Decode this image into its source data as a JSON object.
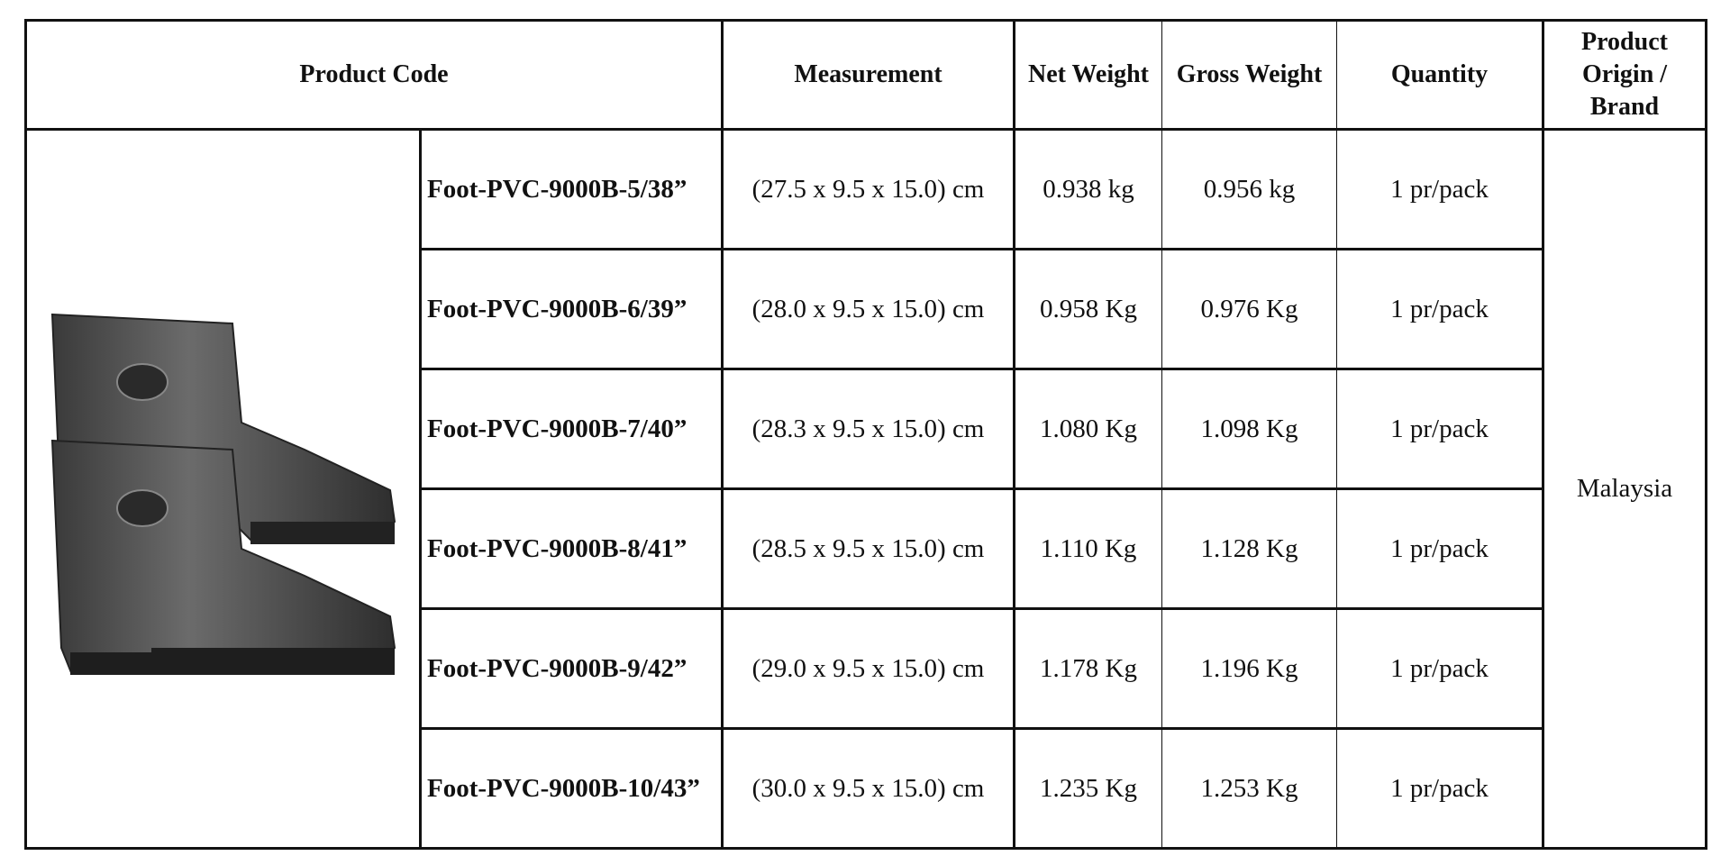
{
  "table": {
    "headers": [
      "Product Code",
      "Measurement",
      "Net Weight",
      "Gross Weight",
      "Quantity",
      "Product Origin / Brand"
    ],
    "rows": [
      [
        "Foot-PVC-9000B-5/38”",
        "(27.5 x 9.5 x 15.0) cm",
        "0.938 kg",
        "0.956 kg",
        "1 pr/pack"
      ],
      [
        "Foot-PVC-9000B-6/39”",
        "(28.0 x 9.5 x 15.0) cm",
        "0.958 Kg",
        "0.976 Kg",
        "1 pr/pack"
      ],
      [
        "Foot-PVC-9000B-7/40”",
        "(28.3 x 9.5 x 15.0) cm",
        "1.080 Kg",
        "1.098 Kg",
        "1 pr/pack"
      ],
      [
        "Foot-PVC-9000B-8/41”",
        "(28.5 x 9.5 x 15.0) cm",
        "1.110 Kg",
        "1.128 Kg",
        "1 pr/pack"
      ],
      [
        "Foot-PVC-9000B-9/42”",
        "(29.0 x 9.5 x 15.0) cm",
        "1.178 Kg",
        "1.196 Kg",
        "1 pr/pack"
      ],
      [
        "Foot-PVC-9000B-10/43”",
        "(30.0 x 9.5 x 15.0) cm",
        "1.235 Kg",
        "1.253 Kg",
        "1 pr/pack"
      ]
    ],
    "origin": "Malaysia"
  }
}
